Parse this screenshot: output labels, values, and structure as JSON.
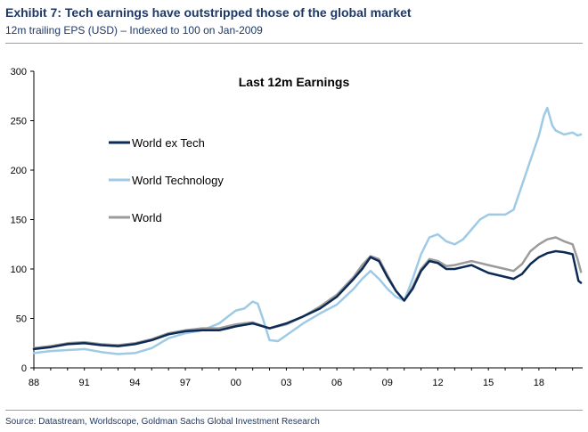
{
  "exhibit": {
    "title": "Exhibit 7: Tech earnings have outstripped those of the global market",
    "subtitle": "12m trailing EPS (USD) – Indexed to 100 on Jan-2009",
    "source": "Source: Datastream, Worldscope, Goldman Sachs Global Investment Research"
  },
  "chart_data": {
    "type": "line",
    "title": "Last 12m Earnings",
    "xlabel": "",
    "ylabel": "",
    "xlim": [
      1988,
      2020.6
    ],
    "ylim": [
      0,
      300
    ],
    "x_ticks": [
      1988,
      1991,
      1994,
      1997,
      2000,
      2003,
      2006,
      2009,
      2012,
      2015,
      2018
    ],
    "x_tick_labels": [
      "88",
      "91",
      "94",
      "97",
      "00",
      "03",
      "06",
      "09",
      "12",
      "15",
      "18"
    ],
    "y_ticks": [
      0,
      50,
      100,
      150,
      200,
      250,
      300
    ],
    "y_tick_labels": [
      "0",
      "50",
      "100",
      "150",
      "200",
      "250",
      "300"
    ],
    "grid": false,
    "legend_position": "left",
    "series": [
      {
        "name": "World ex Tech",
        "color": "#0b2a55",
        "points": [
          [
            1988,
            19
          ],
          [
            1989,
            21
          ],
          [
            1990,
            24
          ],
          [
            1991,
            25
          ],
          [
            1992,
            23
          ],
          [
            1993,
            22
          ],
          [
            1994,
            24
          ],
          [
            1995,
            28
          ],
          [
            1996,
            34
          ],
          [
            1997,
            37
          ],
          [
            1998,
            38
          ],
          [
            1999,
            38
          ],
          [
            2000,
            42
          ],
          [
            2001,
            45
          ],
          [
            2002,
            40
          ],
          [
            2003,
            45
          ],
          [
            2004,
            52
          ],
          [
            2005,
            60
          ],
          [
            2006,
            72
          ],
          [
            2007,
            90
          ],
          [
            2007.5,
            100
          ],
          [
            2008,
            112
          ],
          [
            2008.5,
            108
          ],
          [
            2009,
            92
          ],
          [
            2009.5,
            78
          ],
          [
            2010,
            68
          ],
          [
            2010.5,
            80
          ],
          [
            2011,
            98
          ],
          [
            2011.5,
            108
          ],
          [
            2012,
            106
          ],
          [
            2012.5,
            100
          ],
          [
            2013,
            100
          ],
          [
            2013.5,
            102
          ],
          [
            2014,
            104
          ],
          [
            2014.5,
            100
          ],
          [
            2015,
            96
          ],
          [
            2016,
            92
          ],
          [
            2016.5,
            90
          ],
          [
            2017,
            95
          ],
          [
            2017.5,
            105
          ],
          [
            2018,
            112
          ],
          [
            2018.5,
            116
          ],
          [
            2019,
            118
          ],
          [
            2019.5,
            117
          ],
          [
            2020,
            115
          ],
          [
            2020.2,
            100
          ],
          [
            2020.35,
            88
          ],
          [
            2020.5,
            86
          ]
        ]
      },
      {
        "name": "World Technology",
        "color": "#9ecae6",
        "points": [
          [
            1988,
            15
          ],
          [
            1989,
            17
          ],
          [
            1990,
            18
          ],
          [
            1991,
            19
          ],
          [
            1992,
            16
          ],
          [
            1993,
            14
          ],
          [
            1994,
            15
          ],
          [
            1995,
            20
          ],
          [
            1996,
            30
          ],
          [
            1997,
            35
          ],
          [
            1998,
            38
          ],
          [
            1999,
            45
          ],
          [
            2000,
            58
          ],
          [
            2000.5,
            60
          ],
          [
            2001,
            67
          ],
          [
            2001.3,
            65
          ],
          [
            2001.6,
            50
          ],
          [
            2002,
            28
          ],
          [
            2002.5,
            27
          ],
          [
            2003,
            33
          ],
          [
            2004,
            45
          ],
          [
            2005,
            55
          ],
          [
            2006,
            64
          ],
          [
            2007,
            80
          ],
          [
            2007.5,
            90
          ],
          [
            2008,
            98
          ],
          [
            2008.5,
            90
          ],
          [
            2009,
            80
          ],
          [
            2009.5,
            72
          ],
          [
            2010,
            68
          ],
          [
            2010.5,
            90
          ],
          [
            2011,
            115
          ],
          [
            2011.5,
            132
          ],
          [
            2012,
            135
          ],
          [
            2012.5,
            128
          ],
          [
            2013,
            125
          ],
          [
            2013.5,
            130
          ],
          [
            2014,
            140
          ],
          [
            2014.5,
            150
          ],
          [
            2015,
            155
          ],
          [
            2016,
            155
          ],
          [
            2016.5,
            160
          ],
          [
            2017,
            185
          ],
          [
            2017.5,
            210
          ],
          [
            2018,
            235
          ],
          [
            2018.3,
            255
          ],
          [
            2018.5,
            263
          ],
          [
            2018.8,
            245
          ],
          [
            2019,
            240
          ],
          [
            2019.5,
            236
          ],
          [
            2020,
            238
          ],
          [
            2020.3,
            235
          ],
          [
            2020.5,
            236
          ]
        ]
      },
      {
        "name": "World",
        "color": "#9b9b9b",
        "points": [
          [
            1988,
            20
          ],
          [
            1989,
            22
          ],
          [
            1990,
            25
          ],
          [
            1991,
            26
          ],
          [
            1992,
            24
          ],
          [
            1993,
            23
          ],
          [
            1994,
            25
          ],
          [
            1995,
            29
          ],
          [
            1996,
            35
          ],
          [
            1997,
            38
          ],
          [
            1998,
            40
          ],
          [
            1999,
            40
          ],
          [
            2000,
            44
          ],
          [
            2001,
            46
          ],
          [
            2002,
            40
          ],
          [
            2003,
            44
          ],
          [
            2004,
            52
          ],
          [
            2005,
            62
          ],
          [
            2006,
            74
          ],
          [
            2007,
            92
          ],
          [
            2007.5,
            104
          ],
          [
            2008,
            113
          ],
          [
            2008.5,
            110
          ],
          [
            2009,
            94
          ],
          [
            2009.5,
            78
          ],
          [
            2010,
            68
          ],
          [
            2010.5,
            82
          ],
          [
            2011,
            100
          ],
          [
            2011.5,
            110
          ],
          [
            2012,
            108
          ],
          [
            2012.5,
            103
          ],
          [
            2013,
            104
          ],
          [
            2013.5,
            106
          ],
          [
            2014,
            108
          ],
          [
            2014.5,
            106
          ],
          [
            2015,
            104
          ],
          [
            2016,
            100
          ],
          [
            2016.5,
            98
          ],
          [
            2017,
            105
          ],
          [
            2017.5,
            118
          ],
          [
            2018,
            125
          ],
          [
            2018.5,
            130
          ],
          [
            2019,
            132
          ],
          [
            2019.5,
            128
          ],
          [
            2020,
            125
          ],
          [
            2020.3,
            110
          ],
          [
            2020.5,
            97
          ]
        ]
      }
    ]
  }
}
